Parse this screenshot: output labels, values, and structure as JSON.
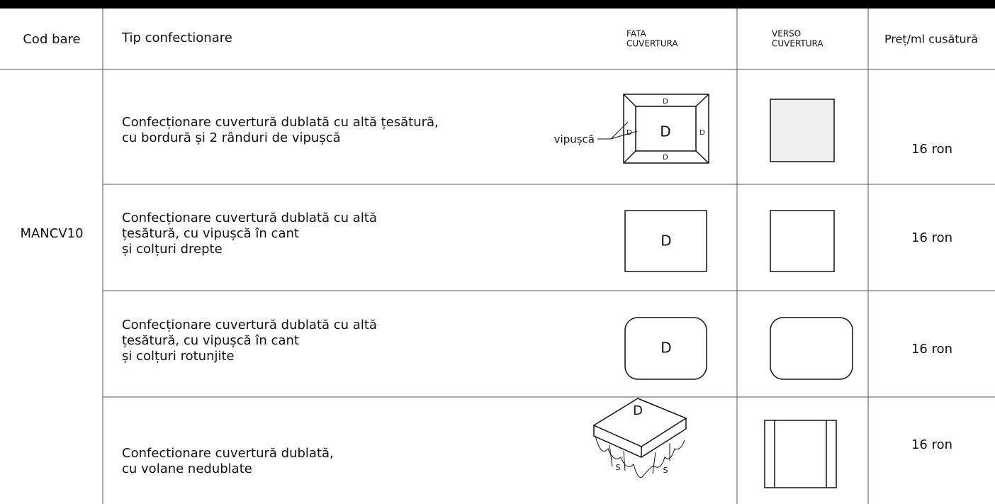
{
  "header": {
    "cod_bare": "Cod bare",
    "tip": "Tip  confectionare",
    "fata": [
      "FATA",
      "CUVERTURA"
    ],
    "verso": [
      "VERSO",
      "CUVERTURA"
    ],
    "pret": "Preț/ml cusătură"
  },
  "code": "MANCV10",
  "labels": {
    "d": "D",
    "s": "S",
    "vipusca": "vipușcă"
  },
  "rows": [
    {
      "description": [
        "Confecționare cuvertură dublată cu altă țesătură,",
        "cu bordură și 2 rânduri de vipușcă"
      ],
      "price": "16 ron"
    },
    {
      "description": [
        "Confecționare cuvertură dublată cu altă",
        "țesătură, cu vipușcă în cant",
        "și colțuri drepte"
      ],
      "price": "16 ron"
    },
    {
      "description": [
        "Confecționare cuvertură dublată cu altă",
        "țesătură, cu vipușcă în cant",
        "și colțuri rotunjite"
      ],
      "price": "16 ron"
    },
    {
      "description": [
        "Confectionare cuvertură dublată,",
        "cu volane nedublate"
      ],
      "price": "16 ron"
    }
  ]
}
